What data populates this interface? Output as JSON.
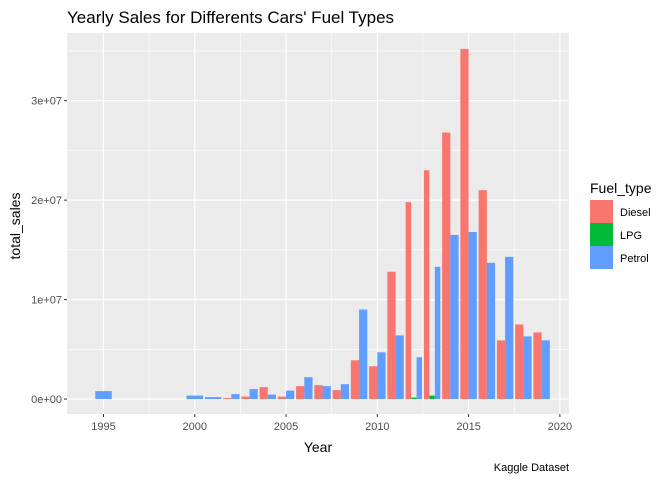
{
  "chart_data": {
    "type": "bar",
    "title": "Yearly Sales for Differents Cars' Fuel Types",
    "xlabel": "Year",
    "ylabel": "total_sales",
    "caption": "Kaggle Dataset",
    "xlim": [
      1993,
      2020.5
    ],
    "ylim": [
      -1500000,
      36800000
    ],
    "x_ticks": [
      1995,
      2000,
      2005,
      2010,
      2015,
      2020
    ],
    "x_tick_labels": [
      "1995",
      "2000",
      "2005",
      "2010",
      "2015",
      "2020"
    ],
    "y_ticks": [
      0,
      10000000,
      20000000,
      30000000
    ],
    "y_tick_labels": [
      "0e+00",
      "1e+07",
      "2e+07",
      "3e+07"
    ],
    "grid": true,
    "background": "#ebebeb",
    "legend": {
      "title": "Fuel_type",
      "position": "right",
      "entries": [
        "Diesel",
        "LPG",
        "Petrol"
      ]
    },
    "series": [
      {
        "name": "Diesel",
        "color": "#f8766d",
        "points": [
          [
            2002,
            100000
          ],
          [
            2003,
            250000
          ],
          [
            2004,
            1200000
          ],
          [
            2005,
            250000
          ],
          [
            2006,
            1300000
          ],
          [
            2007,
            1400000
          ],
          [
            2008,
            900000
          ],
          [
            2009,
            3900000
          ],
          [
            2010,
            3300000
          ],
          [
            2011,
            12800000
          ],
          [
            2012,
            19800000
          ],
          [
            2013,
            23000000
          ],
          [
            2014,
            26800000
          ],
          [
            2015,
            35200000
          ],
          [
            2016,
            21000000
          ],
          [
            2017,
            5900000
          ],
          [
            2018,
            7500000
          ],
          [
            2019,
            6700000
          ]
        ]
      },
      {
        "name": "LPG",
        "color": "#00ba38",
        "points": [
          [
            2012,
            150000
          ],
          [
            2013,
            350000
          ]
        ]
      },
      {
        "name": "Petrol",
        "color": "#619cff",
        "points": [
          [
            1995,
            800000
          ],
          [
            2000,
            350000
          ],
          [
            2001,
            200000
          ],
          [
            2002,
            500000
          ],
          [
            2003,
            1000000
          ],
          [
            2004,
            450000
          ],
          [
            2005,
            850000
          ],
          [
            2006,
            2200000
          ],
          [
            2007,
            1300000
          ],
          [
            2008,
            1500000
          ],
          [
            2009,
            9000000
          ],
          [
            2010,
            4700000
          ],
          [
            2011,
            6400000
          ],
          [
            2012,
            4200000
          ],
          [
            2013,
            13300000
          ],
          [
            2014,
            16500000
          ],
          [
            2015,
            16800000
          ],
          [
            2016,
            13700000
          ],
          [
            2017,
            14300000
          ],
          [
            2018,
            6300000
          ],
          [
            2019,
            5900000
          ]
        ]
      }
    ]
  }
}
